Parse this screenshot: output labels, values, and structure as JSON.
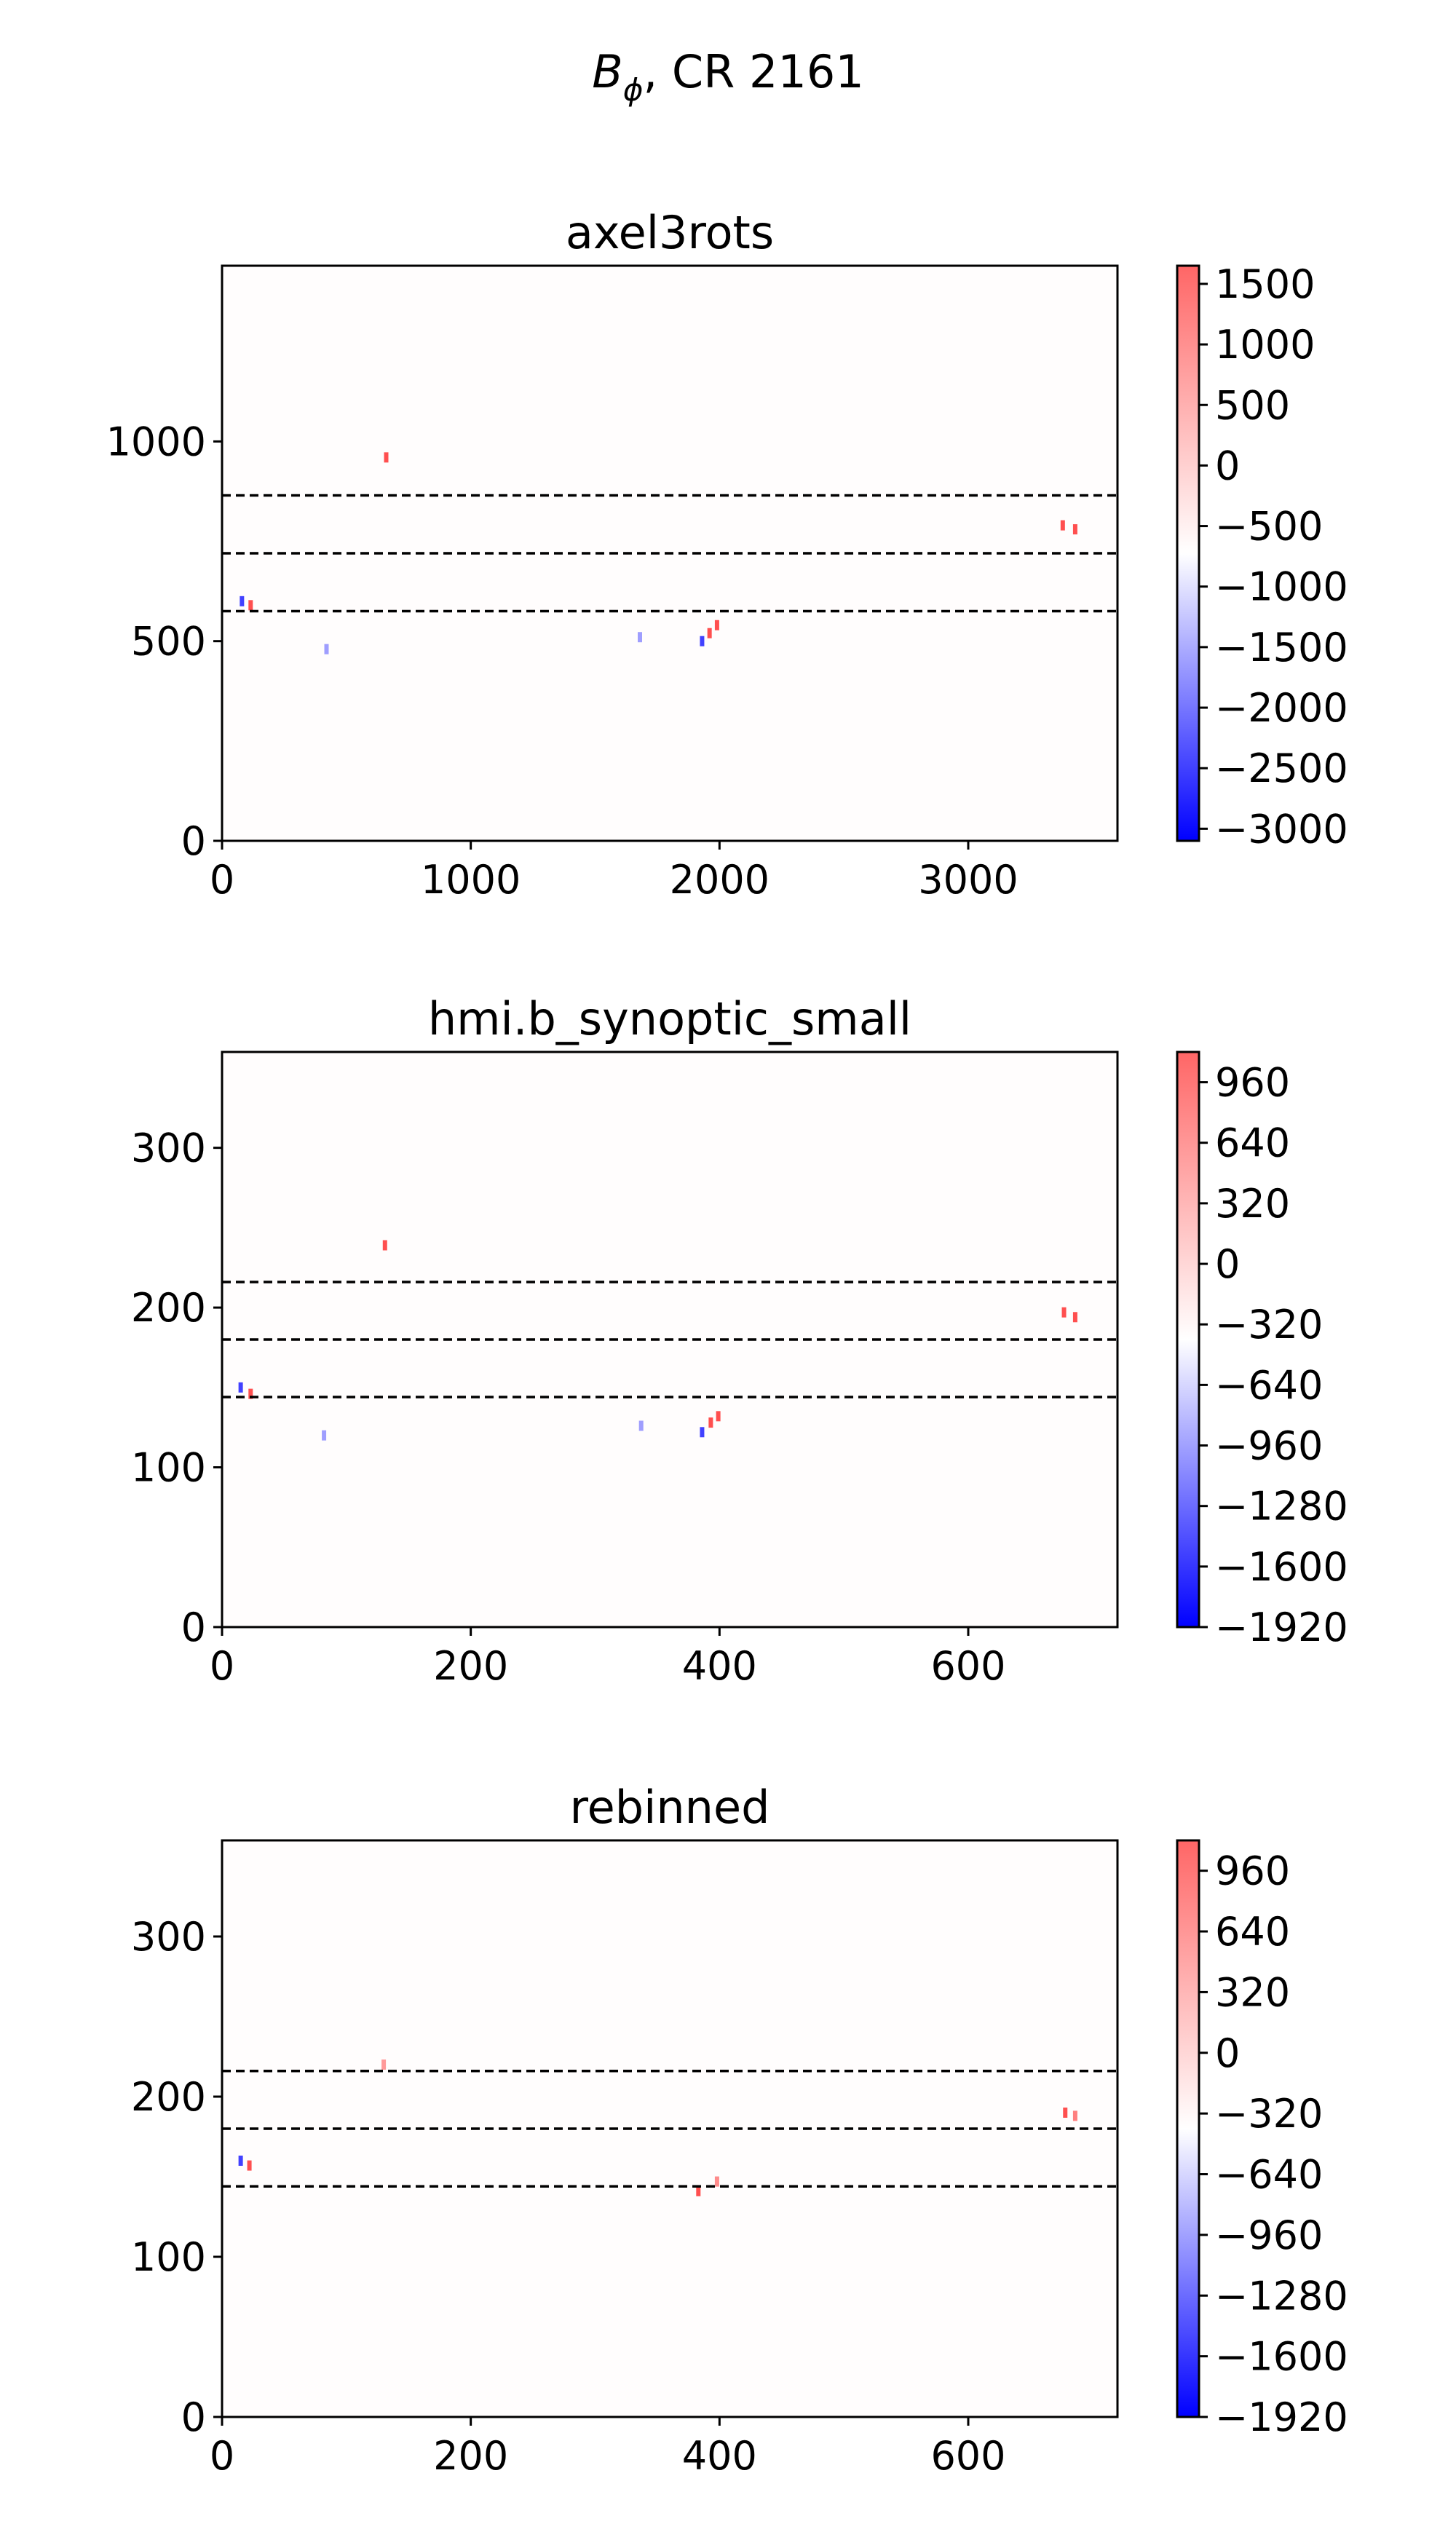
{
  "figure": {
    "title_symbol": "B",
    "title_subscript": "ϕ",
    "title_rest": ", CR 2161"
  },
  "chart_data": [
    {
      "type": "heatmap",
      "title": "axel3rots",
      "xlim": [
        0,
        3600
      ],
      "ylim": [
        0,
        1440
      ],
      "xticks": [
        0,
        1000,
        2000,
        3000
      ],
      "yticks": [
        0,
        500,
        1000
      ],
      "dashed_lines_y": [
        575,
        720,
        865
      ],
      "colorbar": {
        "min": -3100,
        "max": 1650,
        "ticks": [
          1500,
          1000,
          500,
          0,
          -500,
          -1000,
          -1500,
          -2000,
          -2500,
          -3000
        ],
        "colormap": "bwr",
        "low_color": "#0000ff",
        "mid_color": "#ffffff",
        "high_color": "#ff6666"
      },
      "features": [
        {
          "x": 660,
          "y": 960,
          "v": 1
        },
        {
          "x": 80,
          "y": 600,
          "v": -1
        },
        {
          "x": 115,
          "y": 590,
          "v": 1
        },
        {
          "x": 1930,
          "y": 500,
          "v": -1
        },
        {
          "x": 1960,
          "y": 520,
          "v": 1
        },
        {
          "x": 1990,
          "y": 540,
          "v": 1
        },
        {
          "x": 3380,
          "y": 790,
          "v": 1
        },
        {
          "x": 3430,
          "y": 780,
          "v": 1
        },
        {
          "x": 420,
          "y": 480,
          "v": -0.3
        },
        {
          "x": 1680,
          "y": 510,
          "v": -0.3
        }
      ]
    },
    {
      "type": "heatmap",
      "title": "hmi.b_synoptic_small",
      "xlim": [
        0,
        720
      ],
      "ylim": [
        0,
        360
      ],
      "xticks": [
        0,
        200,
        400,
        600
      ],
      "yticks": [
        0,
        100,
        200,
        300
      ],
      "dashed_lines_y": [
        144,
        180,
        216
      ],
      "colorbar": {
        "min": -1920,
        "max": 1120,
        "ticks": [
          960,
          640,
          320,
          0,
          -320,
          -640,
          -960,
          -1280,
          -1600,
          -1920
        ],
        "colormap": "bwr",
        "low_color": "#0000ff",
        "mid_color": "#ffffff",
        "high_color": "#ff6666"
      },
      "features": [
        {
          "x": 131,
          "y": 239,
          "v": 1
        },
        {
          "x": 15,
          "y": 150,
          "v": -1
        },
        {
          "x": 23,
          "y": 146,
          "v": 1
        },
        {
          "x": 386,
          "y": 122,
          "v": -1
        },
        {
          "x": 393,
          "y": 128,
          "v": 1
        },
        {
          "x": 399,
          "y": 132,
          "v": 1
        },
        {
          "x": 677,
          "y": 197,
          "v": 1
        },
        {
          "x": 686,
          "y": 194,
          "v": 1
        },
        {
          "x": 82,
          "y": 120,
          "v": -0.3
        },
        {
          "x": 337,
          "y": 126,
          "v": -0.3
        }
      ]
    },
    {
      "type": "heatmap",
      "title": "rebinned",
      "xlim": [
        0,
        720
      ],
      "ylim": [
        0,
        360
      ],
      "xticks": [
        0,
        200,
        400,
        600
      ],
      "yticks": [
        0,
        100,
        200,
        300
      ],
      "dashed_lines_y": [
        144,
        180,
        216
      ],
      "colorbar": {
        "min": -1920,
        "max": 1120,
        "ticks": [
          960,
          640,
          320,
          0,
          -320,
          -640,
          -960,
          -1280,
          -1600,
          -1920
        ],
        "colormap": "bwr",
        "low_color": "#0000ff",
        "mid_color": "#ffffff",
        "high_color": "#ff6666"
      },
      "features": [
        {
          "x": 130,
          "y": 220,
          "v": 0.4
        },
        {
          "x": 15,
          "y": 160,
          "v": -1
        },
        {
          "x": 22,
          "y": 157,
          "v": 1
        },
        {
          "x": 383,
          "y": 141,
          "v": 1
        },
        {
          "x": 398,
          "y": 147,
          "v": 0.5
        },
        {
          "x": 678,
          "y": 190,
          "v": 1
        },
        {
          "x": 686,
          "y": 188,
          "v": 0.6
        }
      ]
    }
  ]
}
